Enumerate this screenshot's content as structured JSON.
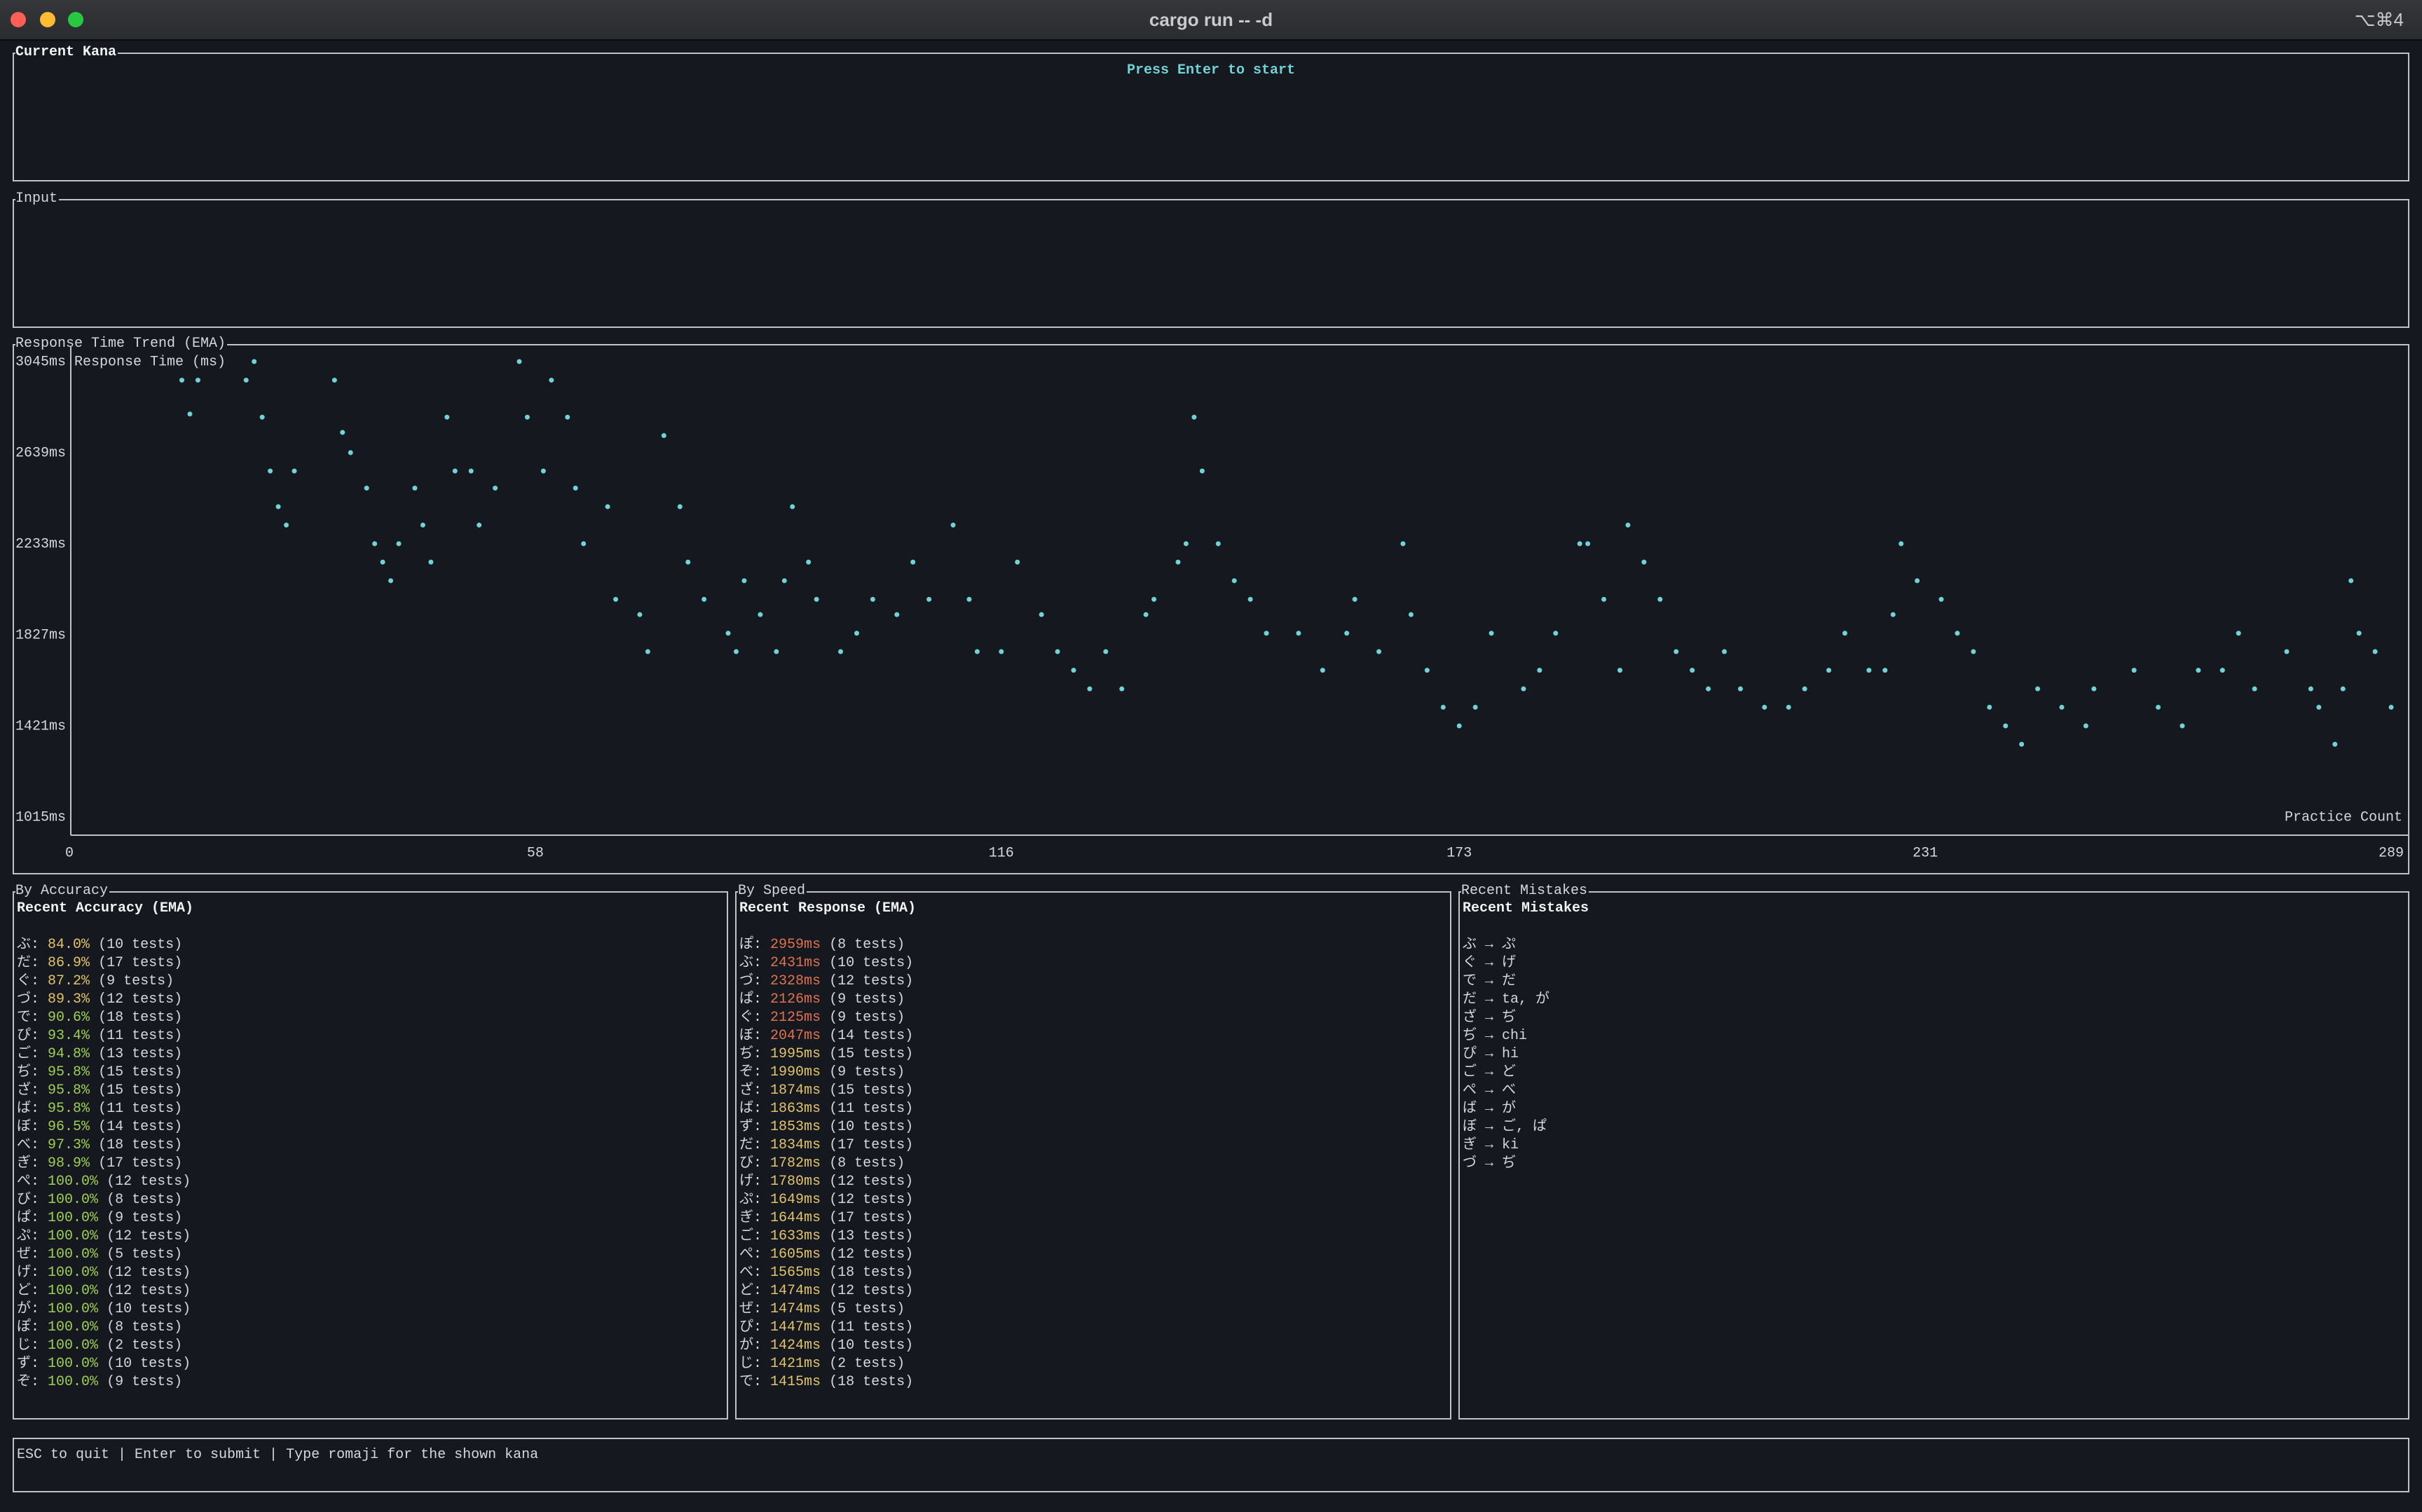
{
  "window": {
    "title": "cargo run -- -d",
    "shortcut": "⌥⌘4"
  },
  "current_kana": {
    "title": "Current Kana",
    "message": "Press Enter to start"
  },
  "input": {
    "title": "Input"
  },
  "chart_data": {
    "type": "scatter",
    "title": "Response Time Trend (EMA)",
    "y_label": "Response Time (ms)",
    "x_label": "Practice Count",
    "color": "#6fd3d8",
    "xlim": [
      0,
      289
    ],
    "ylim": [
      1015,
      3045
    ],
    "xticks": [
      0,
      58,
      116,
      173,
      231,
      289
    ],
    "yticks": [
      {
        "value": 3045,
        "label": "3045ms"
      },
      {
        "value": 2639,
        "label": "2639ms"
      },
      {
        "value": 2233,
        "label": "2233ms"
      },
      {
        "value": 1827,
        "label": "1827ms"
      },
      {
        "value": 1421,
        "label": "1421ms"
      },
      {
        "value": 1015,
        "label": "1015ms"
      }
    ],
    "x": [
      14,
      15,
      16,
      22,
      23,
      24,
      25,
      26,
      27,
      28,
      33,
      34,
      35,
      37,
      38,
      39,
      40,
      41,
      43,
      44,
      45,
      47,
      48,
      50,
      51,
      53,
      56,
      57,
      59,
      60,
      62,
      63,
      64,
      67,
      68,
      71,
      72,
      74,
      76,
      77,
      79,
      82,
      83,
      84,
      86,
      88,
      89,
      90,
      92,
      93,
      96,
      98,
      100,
      103,
      105,
      107,
      110,
      112,
      113,
      116,
      118,
      121,
      123,
      125,
      127,
      129,
      131,
      134,
      135,
      138,
      139,
      140,
      141,
      143,
      145,
      147,
      149,
      153,
      156,
      159,
      160,
      163,
      166,
      167,
      169,
      171,
      173,
      175,
      177,
      181,
      183,
      185,
      188,
      189,
      191,
      193,
      194,
      196,
      198,
      200,
      202,
      204,
      206,
      208,
      211,
      214,
      216,
      219,
      221,
      224,
      226,
      227,
      228,
      230,
      233,
      235,
      237,
      239,
      241,
      243,
      245,
      248,
      251,
      252,
      257,
      260,
      263,
      265,
      268,
      270,
      272,
      276,
      279,
      280,
      282,
      283,
      284,
      285,
      287,
      289
    ],
    "values": [
      2962,
      2811,
      2962,
      2962,
      3045,
      2797,
      2557,
      2398,
      2316,
      2557,
      2962,
      2729,
      2639,
      2481,
      2233,
      2151,
      2068,
      2233,
      2481,
      2316,
      2151,
      2797,
      2557,
      2557,
      2316,
      2481,
      3045,
      2797,
      2557,
      2962,
      2797,
      2481,
      2233,
      2398,
      1985,
      1917,
      1752,
      2715,
      2398,
      2151,
      1985,
      1834,
      1752,
      2068,
      1917,
      1752,
      2068,
      2398,
      2151,
      1985,
      1752,
      1834,
      1985,
      1917,
      2151,
      1985,
      2316,
      1985,
      1752,
      1752,
      2151,
      1917,
      1752,
      1669,
      1586,
      1752,
      1586,
      1917,
      1985,
      2151,
      2233,
      2797,
      2557,
      2233,
      2068,
      1985,
      1834,
      1834,
      1669,
      1834,
      1985,
      1752,
      2233,
      1917,
      1669,
      1504,
      1421,
      1504,
      1834,
      1586,
      1669,
      1834,
      2233,
      2233,
      1985,
      1669,
      2316,
      2151,
      1985,
      1752,
      1669,
      1586,
      1752,
      1586,
      1504,
      1504,
      1586,
      1669,
      1834,
      1669,
      1669,
      1917,
      2233,
      2068,
      1985,
      1834,
      1752,
      1504,
      1421,
      1339,
      1586,
      1504,
      1421,
      1586,
      1669,
      1504,
      1421,
      1669,
      1669,
      1834,
      1586,
      1752,
      1586,
      1504,
      1339,
      1586,
      2068,
      1834,
      1752,
      1504
    ]
  },
  "accuracy": {
    "title": "By Accuracy",
    "heading": "Recent Accuracy (EMA)",
    "rows": [
      {
        "label": "ぶ:",
        "value": "84.0%",
        "tests": "(10 tests)",
        "color": "#e3c46b"
      },
      {
        "label": "だ:",
        "value": "86.9%",
        "tests": "(17 tests)",
        "color": "#e3c46b"
      },
      {
        "label": "ぐ:",
        "value": "87.2%",
        "tests": "(9 tests)",
        "color": "#e3c46b"
      },
      {
        "label": "づ:",
        "value": "89.3%",
        "tests": "(12 tests)",
        "color": "#e3c46b"
      },
      {
        "label": "で:",
        "value": "90.6%",
        "tests": "(18 tests)",
        "color": "#9fcf55"
      },
      {
        "label": "ぴ:",
        "value": "93.4%",
        "tests": "(11 tests)",
        "color": "#9fcf55"
      },
      {
        "label": "ご:",
        "value": "94.8%",
        "tests": "(13 tests)",
        "color": "#9fcf55"
      },
      {
        "label": "ぢ:",
        "value": "95.8%",
        "tests": "(15 tests)",
        "color": "#9fcf55"
      },
      {
        "label": "ざ:",
        "value": "95.8%",
        "tests": "(15 tests)",
        "color": "#9fcf55"
      },
      {
        "label": "ば:",
        "value": "95.8%",
        "tests": "(11 tests)",
        "color": "#9fcf55"
      },
      {
        "label": "ぼ:",
        "value": "96.5%",
        "tests": "(14 tests)",
        "color": "#9fcf55"
      },
      {
        "label": "べ:",
        "value": "97.3%",
        "tests": "(18 tests)",
        "color": "#9fcf55"
      },
      {
        "label": "ぎ:",
        "value": "98.9%",
        "tests": "(17 tests)",
        "color": "#9fcf55"
      },
      {
        "label": "ぺ:",
        "value": "100.0%",
        "tests": "(12 tests)",
        "color": "#9fcf55"
      },
      {
        "label": "び:",
        "value": "100.0%",
        "tests": "(8 tests)",
        "color": "#9fcf55"
      },
      {
        "label": "ぱ:",
        "value": "100.0%",
        "tests": "(9 tests)",
        "color": "#9fcf55"
      },
      {
        "label": "ぷ:",
        "value": "100.0%",
        "tests": "(12 tests)",
        "color": "#9fcf55"
      },
      {
        "label": "ぜ:",
        "value": "100.0%",
        "tests": "(5 tests)",
        "color": "#9fcf55"
      },
      {
        "label": "げ:",
        "value": "100.0%",
        "tests": "(12 tests)",
        "color": "#9fcf55"
      },
      {
        "label": "ど:",
        "value": "100.0%",
        "tests": "(12 tests)",
        "color": "#9fcf55"
      },
      {
        "label": "が:",
        "value": "100.0%",
        "tests": "(10 tests)",
        "color": "#9fcf55"
      },
      {
        "label": "ぽ:",
        "value": "100.0%",
        "tests": "(8 tests)",
        "color": "#9fcf55"
      },
      {
        "label": "じ:",
        "value": "100.0%",
        "tests": "(2 tests)",
        "color": "#9fcf55"
      },
      {
        "label": "ず:",
        "value": "100.0%",
        "tests": "(10 tests)",
        "color": "#9fcf55"
      },
      {
        "label": "ぞ:",
        "value": "100.0%",
        "tests": "(9 tests)",
        "color": "#9fcf55"
      }
    ]
  },
  "speed": {
    "title": "By Speed",
    "heading": "Recent Response (EMA)",
    "rows": [
      {
        "label": "ぽ:",
        "value": "2959ms",
        "tests": "(8 tests)",
        "color": "#e0714f"
      },
      {
        "label": "ぶ:",
        "value": "2431ms",
        "tests": "(10 tests)",
        "color": "#e0714f"
      },
      {
        "label": "づ:",
        "value": "2328ms",
        "tests": "(12 tests)",
        "color": "#e0714f"
      },
      {
        "label": "ぱ:",
        "value": "2126ms",
        "tests": "(9 tests)",
        "color": "#e0714f"
      },
      {
        "label": "ぐ:",
        "value": "2125ms",
        "tests": "(9 tests)",
        "color": "#e0714f"
      },
      {
        "label": "ぼ:",
        "value": "2047ms",
        "tests": "(14 tests)",
        "color": "#e0714f"
      },
      {
        "label": "ぢ:",
        "value": "1995ms",
        "tests": "(15 tests)",
        "color": "#e3c46b"
      },
      {
        "label": "ぞ:",
        "value": "1990ms",
        "tests": "(9 tests)",
        "color": "#e3c46b"
      },
      {
        "label": "ざ:",
        "value": "1874ms",
        "tests": "(15 tests)",
        "color": "#e3c46b"
      },
      {
        "label": "ば:",
        "value": "1863ms",
        "tests": "(11 tests)",
        "color": "#e3c46b"
      },
      {
        "label": "ず:",
        "value": "1853ms",
        "tests": "(10 tests)",
        "color": "#e3c46b"
      },
      {
        "label": "だ:",
        "value": "1834ms",
        "tests": "(17 tests)",
        "color": "#e3c46b"
      },
      {
        "label": "び:",
        "value": "1782ms",
        "tests": "(8 tests)",
        "color": "#e3c46b"
      },
      {
        "label": "げ:",
        "value": "1780ms",
        "tests": "(12 tests)",
        "color": "#e3c46b"
      },
      {
        "label": "ぷ:",
        "value": "1649ms",
        "tests": "(12 tests)",
        "color": "#e3c46b"
      },
      {
        "label": "ぎ:",
        "value": "1644ms",
        "tests": "(17 tests)",
        "color": "#e3c46b"
      },
      {
        "label": "ご:",
        "value": "1633ms",
        "tests": "(13 tests)",
        "color": "#e3c46b"
      },
      {
        "label": "ぺ:",
        "value": "1605ms",
        "tests": "(12 tests)",
        "color": "#e3c46b"
      },
      {
        "label": "べ:",
        "value": "1565ms",
        "tests": "(18 tests)",
        "color": "#e3c46b"
      },
      {
        "label": "ど:",
        "value": "1474ms",
        "tests": "(12 tests)",
        "color": "#e3c46b"
      },
      {
        "label": "ぜ:",
        "value": "1474ms",
        "tests": "(5 tests)",
        "color": "#e3c46b"
      },
      {
        "label": "ぴ:",
        "value": "1447ms",
        "tests": "(11 tests)",
        "color": "#e3c46b"
      },
      {
        "label": "が:",
        "value": "1424ms",
        "tests": "(10 tests)",
        "color": "#e3c46b"
      },
      {
        "label": "じ:",
        "value": "1421ms",
        "tests": "(2 tests)",
        "color": "#e3c46b"
      },
      {
        "label": "で:",
        "value": "1415ms",
        "tests": "(18 tests)",
        "color": "#e3c46b"
      }
    ]
  },
  "mistakes": {
    "title": "Recent Mistakes",
    "heading": "Recent Mistakes",
    "rows": [
      "ぶ → ぷ",
      "ぐ → げ",
      "で → だ",
      "だ → ta, が",
      "ざ → ぢ",
      "ぢ → chi",
      "ぴ → hi",
      "ご → ど",
      "ぺ → べ",
      "ば → が",
      "ぼ → ご, ぱ",
      "ぎ → ki",
      "づ → ぢ"
    ]
  },
  "footer": {
    "help": "ESC to quit | Enter to submit | Type romaji for the shown kana"
  }
}
